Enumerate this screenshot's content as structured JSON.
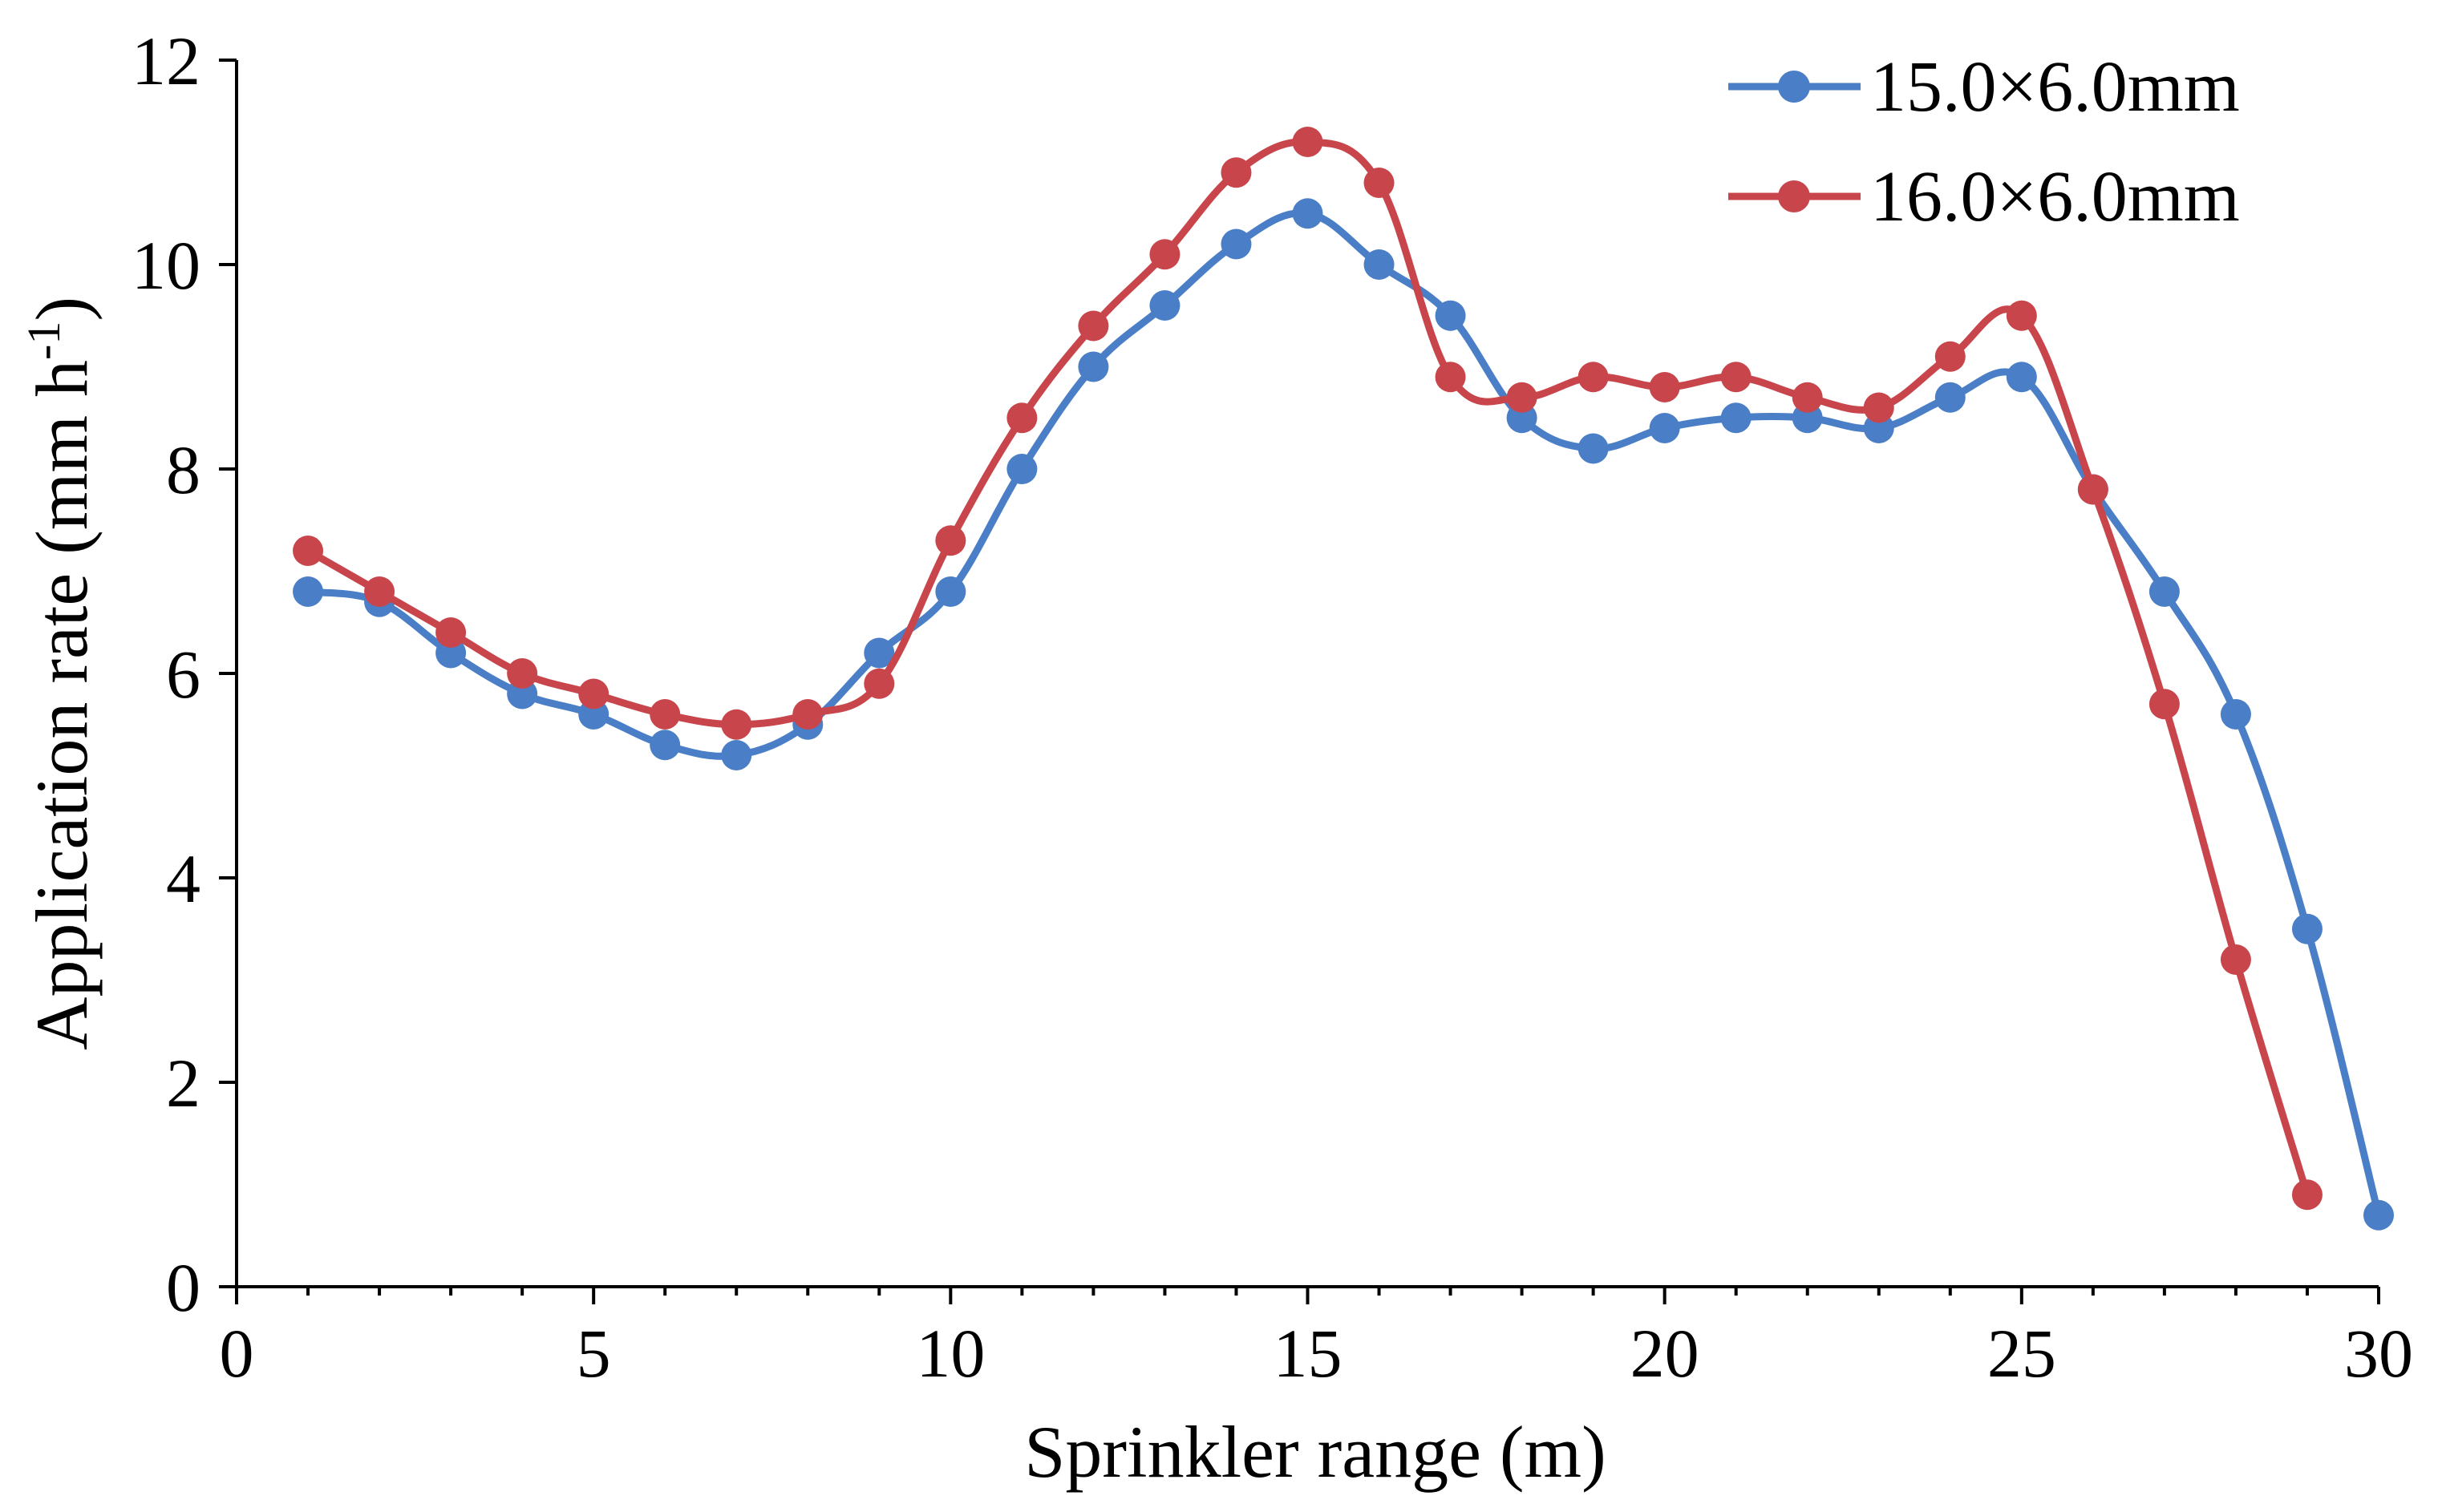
{
  "chart_data": {
    "type": "line",
    "title": "",
    "xlabel": "Sprinkler range (m)",
    "ylabel_main": "Application rate (mm h",
    "ylabel_sup": "-1",
    "ylabel_close": ")",
    "xlim": [
      0,
      30
    ],
    "ylim": [
      0,
      12
    ],
    "xticks": [
      0,
      5,
      10,
      15,
      20,
      25,
      30
    ],
    "yticks": [
      0,
      2,
      4,
      6,
      8,
      10,
      12
    ],
    "grid": false,
    "legend_position": "top-right",
    "series": [
      {
        "name": "15.0×6.0mm",
        "color": "#4a7ec6",
        "x": [
          1,
          2,
          3,
          4,
          5,
          6,
          7,
          8,
          9,
          10,
          11,
          12,
          13,
          14,
          15,
          16,
          17,
          18,
          19,
          20,
          21,
          22,
          23,
          24,
          25,
          26,
          27,
          28,
          29,
          30
        ],
        "values": [
          6.8,
          6.7,
          6.2,
          5.8,
          5.6,
          5.3,
          5.2,
          5.5,
          6.2,
          6.8,
          8.0,
          9.0,
          9.6,
          10.2,
          10.5,
          10.0,
          9.5,
          8.5,
          8.2,
          8.4,
          8.5,
          8.5,
          8.4,
          8.7,
          8.9,
          7.8,
          6.8,
          5.6,
          3.5,
          0.7
        ]
      },
      {
        "name": "16.0×6.0mm",
        "color": "#c8464b",
        "x": [
          1,
          2,
          3,
          4,
          5,
          6,
          7,
          8,
          9,
          10,
          11,
          12,
          13,
          14,
          15,
          16,
          17,
          18,
          19,
          20,
          21,
          22,
          23,
          24,
          25,
          26,
          27,
          28,
          29
        ],
        "values": [
          7.2,
          6.8,
          6.4,
          6.0,
          5.8,
          5.6,
          5.5,
          5.6,
          5.9,
          7.3,
          8.5,
          9.4,
          10.1,
          10.9,
          11.2,
          10.8,
          8.9,
          8.7,
          8.9,
          8.8,
          8.9,
          8.7,
          8.6,
          9.1,
          9.5,
          7.8,
          5.7,
          3.2,
          0.9
        ]
      }
    ]
  }
}
